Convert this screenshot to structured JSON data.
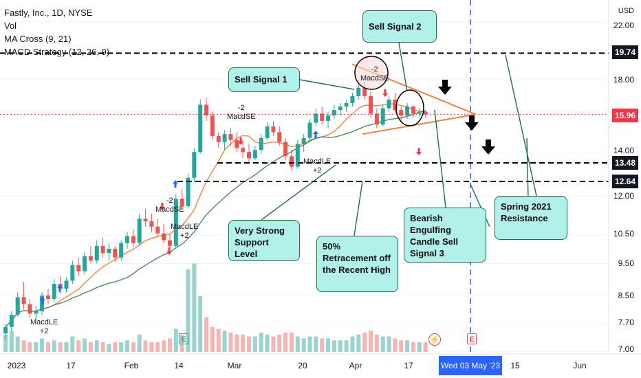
{
  "chart_data": {
    "type": "candlestick",
    "title": "Fastly, Inc., 1D, NYSE",
    "currency": "USD",
    "legend": [
      "Vol",
      "MA Cross (9, 21)",
      "MACD Strategy (12, 26, 9)"
    ],
    "y_ticks": [
      "22.00",
      "18.00",
      "14.00",
      "12.00",
      "10.50",
      "9.50",
      "8.50",
      "7.70",
      "7.00"
    ],
    "y_scale": "log",
    "ylim": [
      7.0,
      22.0
    ],
    "x_ticks": [
      "2023",
      "17",
      "Feb",
      "14",
      "Mar",
      "20",
      "Apr",
      "17",
      "15",
      "Jun"
    ],
    "cursor_date": "Wed 03 May '23",
    "price_levels": [
      {
        "label": "19.74",
        "value": 19.74,
        "style": "dashed"
      },
      {
        "label": "13.48",
        "value": 13.48,
        "style": "dashed"
      },
      {
        "label": "12.64",
        "value": 12.64,
        "style": "dashed"
      }
    ],
    "current_price": {
      "label": "15.96",
      "value": 15.96
    },
    "candles": [
      [
        7.45,
        7.7,
        7.3,
        7.62
      ],
      [
        7.62,
        8.05,
        7.5,
        7.95
      ],
      [
        7.95,
        8.6,
        7.9,
        8.45
      ],
      [
        8.45,
        8.9,
        8.1,
        8.25
      ],
      [
        8.25,
        8.4,
        7.85,
        7.98
      ],
      [
        7.98,
        8.2,
        7.8,
        8.05
      ],
      [
        8.05,
        8.6,
        7.95,
        8.5
      ],
      [
        8.5,
        8.7,
        8.25,
        8.4
      ],
      [
        8.4,
        9.0,
        8.3,
        8.85
      ],
      [
        8.85,
        9.1,
        8.55,
        8.7
      ],
      [
        8.7,
        9.05,
        8.6,
        8.95
      ],
      [
        8.95,
        9.6,
        8.85,
        9.45
      ],
      [
        9.45,
        9.7,
        9.1,
        9.25
      ],
      [
        9.25,
        9.9,
        9.15,
        9.75
      ],
      [
        9.75,
        10.1,
        9.5,
        9.6
      ],
      [
        9.6,
        10.3,
        9.5,
        10.1
      ],
      [
        10.1,
        10.4,
        9.7,
        9.85
      ],
      [
        9.85,
        10.2,
        9.6,
        10.0
      ],
      [
        10.0,
        10.1,
        9.55,
        9.7
      ],
      [
        9.7,
        10.3,
        9.6,
        10.2
      ],
      [
        10.2,
        10.6,
        10.0,
        10.45
      ],
      [
        10.45,
        10.7,
        10.05,
        10.2
      ],
      [
        10.2,
        11.3,
        10.1,
        11.1
      ],
      [
        11.1,
        11.5,
        10.8,
        11.0
      ],
      [
        11.0,
        11.3,
        10.6,
        10.8
      ],
      [
        10.8,
        11.1,
        10.4,
        10.55
      ],
      [
        10.55,
        10.9,
        10.2,
        10.3
      ],
      [
        10.3,
        10.5,
        9.9,
        10.1
      ],
      [
        10.1,
        12.1,
        10.0,
        11.9
      ],
      [
        11.9,
        12.3,
        11.5,
        11.6
      ],
      [
        11.6,
        13.0,
        11.5,
        12.8
      ],
      [
        12.8,
        14.2,
        12.6,
        14.0
      ],
      [
        14.0,
        16.8,
        13.9,
        16.5
      ],
      [
        16.5,
        16.9,
        15.6,
        15.9
      ],
      [
        15.9,
        16.1,
        14.6,
        14.8
      ],
      [
        14.8,
        15.0,
        14.2,
        14.5
      ],
      [
        14.5,
        15.1,
        14.1,
        14.9
      ],
      [
        14.9,
        15.2,
        14.3,
        14.6
      ],
      [
        14.6,
        15.0,
        14.0,
        14.2
      ],
      [
        14.2,
        14.6,
        13.7,
        14.0
      ],
      [
        14.0,
        14.4,
        13.5,
        13.7
      ],
      [
        13.7,
        14.3,
        13.6,
        14.1
      ],
      [
        14.1,
        14.9,
        13.9,
        14.7
      ],
      [
        14.7,
        15.5,
        14.6,
        15.3
      ],
      [
        15.3,
        15.6,
        14.8,
        15.0
      ],
      [
        15.0,
        15.3,
        14.3,
        14.5
      ],
      [
        14.5,
        14.7,
        13.6,
        13.8
      ],
      [
        13.8,
        14.1,
        13.1,
        13.3
      ],
      [
        13.3,
        14.6,
        13.2,
        14.4
      ],
      [
        14.4,
        14.9,
        14.0,
        14.7
      ],
      [
        14.7,
        15.7,
        14.5,
        15.5
      ],
      [
        15.5,
        16.3,
        15.3,
        16.0
      ],
      [
        16.0,
        16.4,
        15.4,
        15.6
      ],
      [
        15.6,
        16.1,
        15.2,
        15.9
      ],
      [
        15.9,
        16.5,
        15.7,
        16.2
      ],
      [
        16.2,
        16.6,
        15.9,
        16.4
      ],
      [
        16.4,
        16.8,
        16.1,
        16.6
      ],
      [
        16.6,
        17.2,
        16.4,
        17.0
      ],
      [
        17.0,
        17.7,
        16.8,
        17.5
      ],
      [
        17.5,
        17.9,
        16.8,
        17.0
      ],
      [
        17.0,
        17.3,
        15.8,
        16.0
      ],
      [
        16.0,
        16.3,
        15.2,
        15.4
      ],
      [
        15.4,
        16.5,
        15.3,
        16.3
      ],
      [
        16.3,
        17.0,
        16.1,
        16.8
      ],
      [
        16.8,
        17.2,
        16.0,
        16.2
      ],
      [
        16.2,
        16.4,
        15.6,
        15.9
      ],
      [
        15.9,
        16.6,
        15.7,
        16.4
      ],
      [
        16.4,
        16.5,
        15.8,
        16.0
      ],
      [
        16.0,
        16.3,
        15.8,
        16.1
      ],
      [
        16.1,
        16.2,
        15.8,
        15.96
      ]
    ],
    "volumes": [
      0.9,
      1.1,
      0.8,
      0.6,
      0.5,
      0.5,
      0.7,
      0.5,
      0.6,
      0.5,
      0.5,
      0.8,
      0.6,
      0.7,
      0.5,
      0.6,
      0.5,
      0.4,
      0.5,
      0.5,
      0.6,
      0.5,
      0.9,
      0.6,
      0.5,
      0.5,
      0.6,
      0.7,
      1.2,
      0.9,
      4.3,
      4.6,
      2.9,
      1.8,
      1.3,
      1.2,
      1.1,
      1.0,
      0.9,
      0.9,
      0.8,
      0.8,
      1.0,
      0.9,
      0.8,
      0.9,
      1.0,
      1.0,
      0.8,
      0.7,
      0.8,
      0.8,
      0.7,
      0.7,
      0.6,
      0.6,
      0.6,
      0.8,
      0.9,
      1.0,
      1.1,
      0.9,
      0.8,
      0.8,
      0.7,
      0.6,
      0.6,
      0.5,
      0.5,
      0.5
    ]
  },
  "signals": [
    {
      "text": "MacdLE",
      "sub": "+2"
    },
    {
      "text": "MacdSE",
      "sub": "-2"
    },
    {
      "text": "MacdLE",
      "sub": "+2"
    },
    {
      "text": "MacdSE",
      "sub": "-2"
    },
    {
      "text": "MacdLE",
      "sub": "+2"
    },
    {
      "text": "MacdSE",
      "sub": "-2"
    }
  ],
  "callouts": {
    "sell1": "Sell Signal 1",
    "sell2": "Sell Signal 2",
    "support": "Very Strong Support Level",
    "retrace": "50% Retracement off the Recent High",
    "bearish": "Bearish Engulfing Candle Sell Signal 3",
    "spring": "Spring 2021 Resistance"
  },
  "badges": {
    "earn": "E",
    "earn2": "E",
    "flash": "⚡"
  },
  "colors": {
    "up": "#26a69a",
    "down": "#ef5350",
    "ma_fast": "#f7813b",
    "ma_slow": "#4f8a5b",
    "cursor": "#2962ff",
    "callout_fill": "#b2f0ea"
  }
}
